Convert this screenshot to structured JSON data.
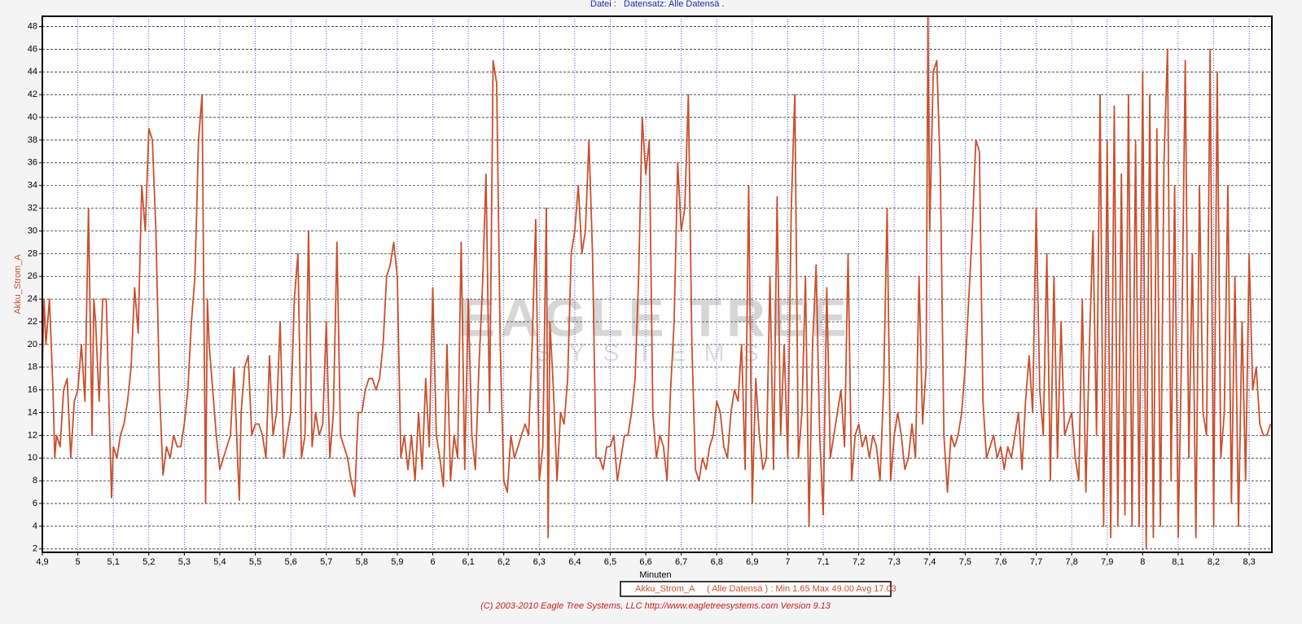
{
  "header": {
    "file": "Datei :",
    "dataset": "Datensatz: Alle Datensä ."
  },
  "chart_data": {
    "type": "line",
    "xlabel": "Minuten",
    "ylabel": "Akku_Strom_A",
    "watermark": {
      "title": "EAGLE TREE",
      "subtitle": "SYSTEMS"
    },
    "xlim": [
      4.9,
      8.364
    ],
    "ylim": [
      1.7,
      48.9
    ],
    "xticks": [
      {
        "value": 4.9,
        "label": "4,9"
      },
      5,
      {
        "value": 5.1,
        "label": "5,1"
      },
      {
        "value": 5.2,
        "label": "5,2"
      },
      {
        "value": 5.3,
        "label": "5,3"
      },
      {
        "value": 5.4,
        "label": "5,4"
      },
      {
        "value": 5.5,
        "label": "5,5"
      },
      {
        "value": 5.6,
        "label": "5,6"
      },
      {
        "value": 5.7,
        "label": "5,7"
      },
      {
        "value": 5.8,
        "label": "5,8"
      },
      {
        "value": 5.9,
        "label": "5,9"
      },
      6,
      {
        "value": 6.1,
        "label": "6,1"
      },
      {
        "value": 6.2,
        "label": "6,2"
      },
      {
        "value": 6.3,
        "label": "6,3"
      },
      {
        "value": 6.4,
        "label": "6,4"
      },
      {
        "value": 6.5,
        "label": "6,5"
      },
      {
        "value": 6.6,
        "label": "6,6"
      },
      {
        "value": 6.7,
        "label": "6,7"
      },
      {
        "value": 6.8,
        "label": "6,8"
      },
      {
        "value": 6.9,
        "label": "6,9"
      },
      7,
      {
        "value": 7.1,
        "label": "7,1"
      },
      {
        "value": 7.2,
        "label": "7,2"
      },
      {
        "value": 7.3,
        "label": "7,3"
      },
      {
        "value": 7.4,
        "label": "7,4"
      },
      {
        "value": 7.5,
        "label": "7,5"
      },
      {
        "value": 7.6,
        "label": "7,6"
      },
      {
        "value": 7.7,
        "label": "7,7"
      },
      {
        "value": 7.8,
        "label": "7,8"
      },
      {
        "value": 7.9,
        "label": "7,9"
      },
      8,
      {
        "value": 8.1,
        "label": "8,1"
      },
      {
        "value": 8.2,
        "label": "8,2"
      },
      {
        "value": 8.3,
        "label": "8,3"
      }
    ],
    "yticks": [
      2,
      4,
      6,
      8,
      10,
      12,
      14,
      16,
      18,
      20,
      22,
      24,
      26,
      28,
      30,
      32,
      34,
      36,
      38,
      40,
      42,
      44,
      46,
      48
    ],
    "grid": true,
    "legend": {
      "name": "Akku_Strom_A",
      "stats": "( Alle Datensä ) : Min 1.65   Max 49.00   Avg 17.03"
    },
    "x": [
      4.9,
      4.905,
      4.91,
      4.915,
      4.92,
      4.93,
      4.935,
      4.94,
      4.95,
      4.96,
      4.97,
      4.98,
      4.99,
      5.0,
      5.01,
      5.02,
      5.03,
      5.04,
      5.045,
      5.05,
      5.06,
      5.07,
      5.08,
      5.09,
      5.095,
      5.1,
      5.11,
      5.12,
      5.13,
      5.14,
      5.15,
      5.16,
      5.17,
      5.18,
      5.19,
      5.2,
      5.21,
      5.22,
      5.23,
      5.24,
      5.25,
      5.26,
      5.27,
      5.28,
      5.29,
      5.3,
      5.31,
      5.32,
      5.33,
      5.34,
      5.35,
      5.36,
      5.365,
      5.37,
      5.38,
      5.39,
      5.4,
      5.41,
      5.42,
      5.43,
      5.44,
      5.45,
      5.455,
      5.46,
      5.47,
      5.48,
      5.49,
      5.5,
      5.51,
      5.52,
      5.53,
      5.54,
      5.55,
      5.56,
      5.57,
      5.58,
      5.59,
      5.6,
      5.61,
      5.62,
      5.63,
      5.64,
      5.65,
      5.66,
      5.67,
      5.68,
      5.69,
      5.7,
      5.71,
      5.72,
      5.73,
      5.74,
      5.75,
      5.76,
      5.77,
      5.78,
      5.79,
      5.8,
      5.81,
      5.82,
      5.83,
      5.84,
      5.85,
      5.86,
      5.87,
      5.88,
      5.89,
      5.9,
      5.91,
      5.92,
      5.93,
      5.94,
      5.95,
      5.96,
      5.97,
      5.98,
      5.99,
      6.0,
      6.01,
      6.02,
      6.03,
      6.04,
      6.05,
      6.06,
      6.07,
      6.08,
      6.09,
      6.1,
      6.11,
      6.12,
      6.13,
      6.14,
      6.15,
      6.16,
      6.17,
      6.18,
      6.19,
      6.2,
      6.21,
      6.22,
      6.23,
      6.24,
      6.25,
      6.26,
      6.27,
      6.28,
      6.29,
      6.3,
      6.31,
      6.32,
      6.325,
      6.33,
      6.34,
      6.35,
      6.36,
      6.37,
      6.38,
      6.39,
      6.4,
      6.41,
      6.42,
      6.43,
      6.44,
      6.45,
      6.46,
      6.47,
      6.48,
      6.49,
      6.5,
      6.51,
      6.52,
      6.53,
      6.54,
      6.55,
      6.56,
      6.57,
      6.58,
      6.59,
      6.6,
      6.61,
      6.62,
      6.63,
      6.64,
      6.65,
      6.66,
      6.67,
      6.68,
      6.69,
      6.7,
      6.71,
      6.72,
      6.73,
      6.74,
      6.75,
      6.76,
      6.77,
      6.78,
      6.79,
      6.8,
      6.81,
      6.82,
      6.83,
      6.84,
      6.85,
      6.86,
      6.87,
      6.88,
      6.89,
      6.9,
      6.91,
      6.92,
      6.93,
      6.94,
      6.95,
      6.96,
      6.97,
      6.98,
      6.99,
      7.0,
      7.01,
      7.02,
      7.03,
      7.04,
      7.05,
      7.06,
      7.07,
      7.08,
      7.09,
      7.1,
      7.11,
      7.12,
      7.13,
      7.14,
      7.15,
      7.16,
      7.17,
      7.18,
      7.19,
      7.2,
      7.21,
      7.22,
      7.23,
      7.24,
      7.25,
      7.26,
      7.27,
      7.28,
      7.29,
      7.3,
      7.31,
      7.32,
      7.33,
      7.34,
      7.35,
      7.36,
      7.37,
      7.38,
      7.39,
      7.395,
      7.4,
      7.41,
      7.42,
      7.43,
      7.44,
      7.45,
      7.46,
      7.47,
      7.48,
      7.49,
      7.5,
      7.51,
      7.52,
      7.53,
      7.54,
      7.55,
      7.56,
      7.57,
      7.58,
      7.59,
      7.6,
      7.61,
      7.62,
      7.63,
      7.64,
      7.65,
      7.66,
      7.67,
      7.68,
      7.69,
      7.7,
      7.71,
      7.72,
      7.73,
      7.74,
      7.75,
      7.76,
      7.77,
      7.78,
      7.79,
      7.8,
      7.81,
      7.82,
      7.83,
      7.84,
      7.85,
      7.86,
      7.87,
      7.88,
      7.89,
      7.9,
      7.91,
      7.92,
      7.93,
      7.94,
      7.95,
      7.96,
      7.97,
      7.98,
      7.99,
      8.0,
      8.01,
      8.02,
      8.03,
      8.04,
      8.05,
      8.06,
      8.07,
      8.08,
      8.09,
      8.1,
      8.11,
      8.12,
      8.13,
      8.14,
      8.15,
      8.16,
      8.17,
      8.18,
      8.19,
      8.2,
      8.21,
      8.22,
      8.23,
      8.24,
      8.25,
      8.26,
      8.27,
      8.28,
      8.29,
      8.3,
      8.31,
      8.32,
      8.33,
      8.34,
      8.35,
      8.36
    ],
    "series": [
      {
        "name": "Akku_Strom_A",
        "color": "#c9502e",
        "values": [
          18,
          24,
          20,
          22,
          24,
          16,
          10,
          12,
          11,
          16,
          17,
          10,
          15,
          16,
          20,
          15,
          32,
          12,
          24,
          22,
          15,
          24,
          24,
          12,
          6.5,
          11,
          10,
          12,
          13,
          15,
          18,
          25,
          21,
          34,
          30,
          39,
          38,
          30,
          16,
          8.5,
          11,
          10,
          12,
          11,
          11,
          13,
          16,
          22,
          26,
          38,
          42,
          6,
          24,
          20,
          16,
          12,
          9,
          10,
          11,
          12,
          18,
          10,
          6.3,
          14,
          18,
          19,
          12,
          13,
          13,
          12,
          10,
          19,
          12,
          14,
          22,
          10,
          12,
          14,
          24,
          28,
          10,
          12,
          30,
          11,
          14,
          12,
          13,
          22,
          10,
          14,
          29,
          12,
          11,
          10,
          8,
          6.6,
          14,
          14,
          16,
          17,
          17,
          16,
          17,
          20,
          26,
          27,
          29,
          26,
          10,
          12,
          9,
          12,
          8,
          14,
          9,
          17,
          11,
          25,
          12,
          10,
          7.5,
          20,
          8,
          12,
          10,
          29,
          9,
          24,
          12,
          9,
          18,
          25,
          35,
          14,
          45,
          43,
          20,
          8,
          7,
          12,
          10,
          11,
          12,
          13,
          12,
          20,
          31,
          8,
          11,
          32,
          3,
          22,
          16,
          8,
          14,
          13,
          17,
          28,
          30,
          34,
          28,
          30,
          38,
          28,
          10,
          10,
          9,
          11,
          11,
          12,
          8,
          10,
          12,
          12,
          14,
          17,
          26,
          40,
          35,
          38,
          14,
          10,
          12,
          11,
          8,
          16,
          22,
          36,
          30,
          32,
          42,
          20,
          9,
          8,
          10,
          9,
          11,
          12,
          15,
          14,
          11,
          10,
          14,
          16,
          15,
          20,
          9,
          34,
          6,
          17,
          12,
          9,
          10,
          26,
          9,
          33,
          12,
          20,
          10,
          32,
          42,
          10,
          14,
          26,
          4,
          20,
          27,
          12,
          5,
          25,
          10,
          12,
          14,
          16,
          11,
          28,
          8,
          12,
          13,
          11,
          12,
          10,
          12,
          11,
          8,
          16,
          32,
          8,
          12,
          14,
          12,
          9,
          10,
          13,
          10,
          26,
          13,
          18,
          49,
          30,
          44,
          45,
          35,
          12,
          7,
          12,
          11,
          12,
          14,
          18,
          24,
          30,
          38,
          37,
          15,
          10,
          11,
          12,
          10,
          11,
          9,
          11,
          10,
          12,
          14,
          9,
          15,
          19,
          14,
          32,
          16,
          12,
          28,
          8,
          26,
          10,
          22,
          12,
          13,
          14,
          10,
          8,
          24,
          7,
          20,
          30,
          12,
          42,
          4,
          38,
          3,
          41,
          4,
          35,
          5,
          42,
          4,
          38,
          4,
          44,
          2,
          42,
          3,
          39,
          4,
          36,
          46,
          8,
          34,
          3,
          20,
          45,
          10,
          28,
          3,
          34,
          14,
          12,
          46,
          4,
          44,
          10,
          14,
          34,
          6,
          26,
          4,
          22,
          8,
          28,
          16,
          18,
          13,
          12,
          12,
          13
        ]
      }
    ]
  },
  "footer": "(C) 2003-2010 Eagle Tree Systems, LLC     http://www.eagletreesystems.com     Version 9.13"
}
